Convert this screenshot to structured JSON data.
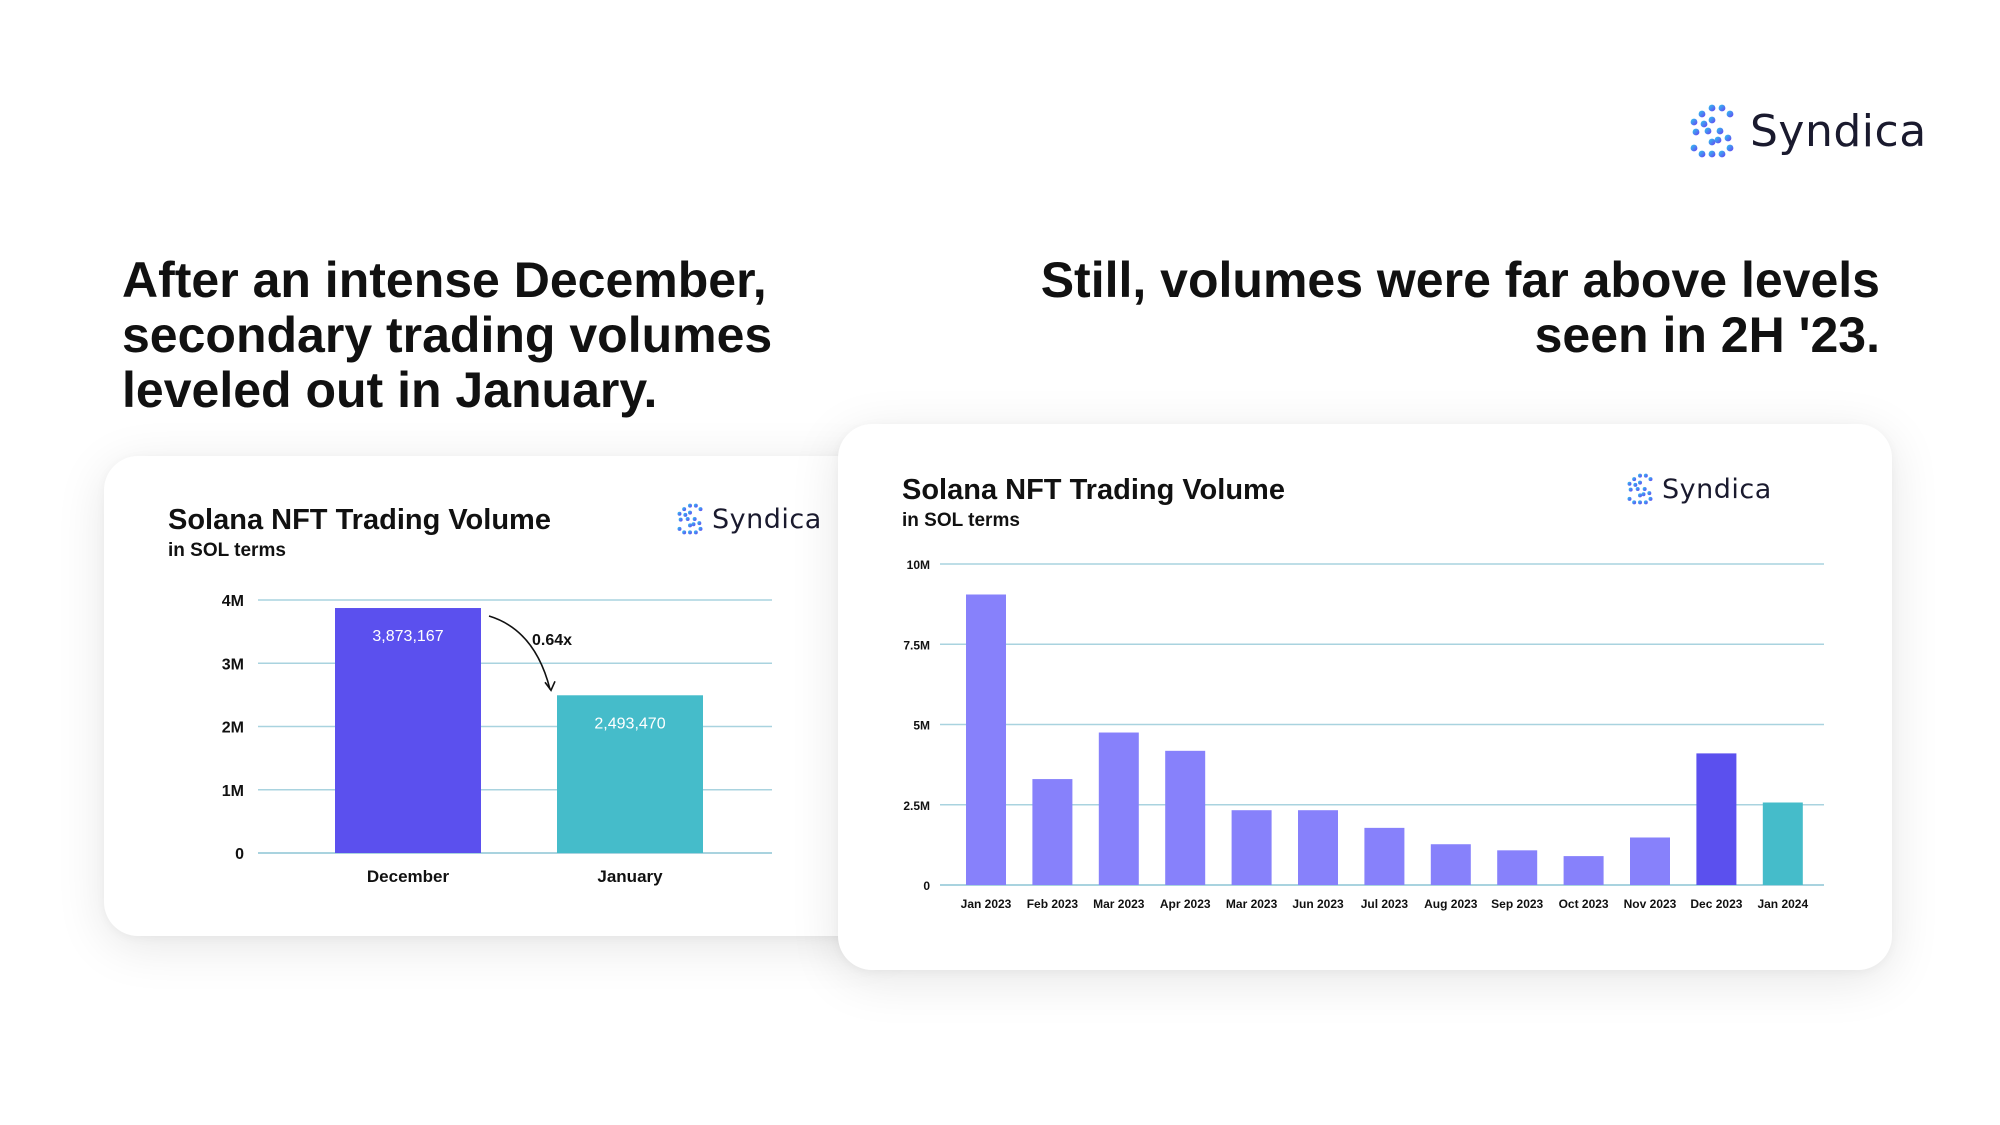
{
  "brand": {
    "name": "Syndica"
  },
  "colors": {
    "grid": "#a9d3df",
    "purple_dark": "#5b50ee",
    "purple_light": "#8781fb",
    "teal": "#45bcca",
    "text": "#111111"
  },
  "headlines": {
    "left": [
      "After an intense December,",
      "secondary trading volumes",
      "leveled out in January."
    ],
    "right": [
      "Still, volumes were far above levels",
      "seen in 2H '23."
    ]
  },
  "chart_data": [
    {
      "type": "bar",
      "title": "Solana NFT Trading Volume",
      "subtitle": "in SOL terms",
      "categories": [
        "December",
        "January"
      ],
      "values": [
        3873167,
        2493470
      ],
      "value_labels": [
        "3,873,167",
        "2,493,470"
      ],
      "bar_colors": [
        "#5b50ee",
        "#45bcca"
      ],
      "ylim": [
        0,
        4000000
      ],
      "yticks": [
        0,
        1000000,
        2000000,
        3000000,
        4000000
      ],
      "ytick_labels": [
        "0",
        "1M",
        "2M",
        "3M",
        "4M"
      ],
      "annotation": "0.64x",
      "grid": true
    },
    {
      "type": "bar",
      "title": "Solana NFT Trading Volume",
      "subtitle": "in SOL terms",
      "categories": [
        "Jan 2023",
        "Feb 2023",
        "Mar 2023",
        "Apr 2023",
        "Mar 2023",
        "Jun 2023",
        "Jul 2023",
        "Aug 2023",
        "Sep 2023",
        "Oct 2023",
        "Nov 2023",
        "Dec 2023",
        "Jan 2024"
      ],
      "values": [
        9050000,
        3300000,
        4750000,
        4180000,
        2330000,
        2330000,
        1780000,
        1270000,
        1080000,
        900000,
        1480000,
        4100000,
        2570000
      ],
      "bar_colors": [
        "#8781fb",
        "#8781fb",
        "#8781fb",
        "#8781fb",
        "#8781fb",
        "#8781fb",
        "#8781fb",
        "#8781fb",
        "#8781fb",
        "#8781fb",
        "#8781fb",
        "#5b50ee",
        "#45bcca"
      ],
      "ylim": [
        0,
        10000000
      ],
      "yticks": [
        0,
        2500000,
        5000000,
        7500000,
        10000000
      ],
      "ytick_labels": [
        "0",
        "2.5M",
        "5M",
        "7.5M",
        "10M"
      ],
      "grid": true
    }
  ]
}
